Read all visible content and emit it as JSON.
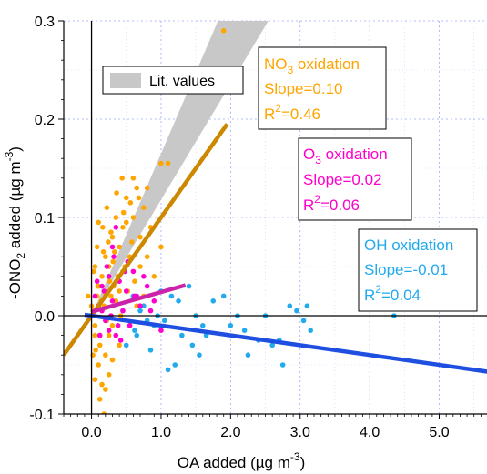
{
  "chart_data": {
    "type": "scatter",
    "xlabel": {
      "base": "OA added (µg m",
      "sup": "-3",
      "end": ")"
    },
    "ylabel": {
      "base": "-ONO",
      "sub": "2",
      "mid": " added (µg m",
      "sup": "-3",
      "end": ")"
    },
    "xlim": [
      -0.4,
      5.7
    ],
    "ylim": [
      -0.1,
      0.3
    ],
    "x_ticks": [
      0.0,
      1.0,
      2.0,
      3.0,
      4.0,
      5.0
    ],
    "x_tick_labels": [
      "0.0",
      "1.0",
      "2.0",
      "3.0",
      "4.0",
      "5.0"
    ],
    "y_ticks": [
      -0.1,
      0.0,
      0.1,
      0.2,
      0.3
    ],
    "y_tick_labels": [
      "-0.1",
      "0.0",
      "0.1",
      "0.2",
      "0.3"
    ],
    "grid": true,
    "legend": {
      "position": "top-left",
      "label": "Lit. values",
      "color": "#c8c8c8"
    },
    "lit_band": {
      "x_from": 0,
      "upper_slope": 0.165,
      "lower_slope": 0.118,
      "color": "#c8c8c8"
    },
    "series": [
      {
        "id": "no3",
        "color": "#ffa500",
        "line_color": "#cc8800",
        "fit": {
          "slope": 0.1,
          "intercept": 0.0,
          "x_range": [
            -0.4,
            1.95
          ]
        },
        "annotation": {
          "name": "NO",
          "name_sub": "3",
          "name_end": " oxidation",
          "slope_text": "Slope=0.10",
          "r2_text": "=0.46"
        },
        "points": [
          [
            0.02,
            0.005
          ],
          [
            0.05,
            -0.01
          ],
          [
            0.08,
            0.02
          ],
          [
            0.1,
            0.03
          ],
          [
            0.12,
            -0.02
          ],
          [
            0.15,
            0.04
          ],
          [
            0.18,
            0.01
          ],
          [
            0.2,
            0.06
          ],
          [
            0.22,
            -0.005
          ],
          [
            0.25,
            0.05
          ],
          [
            0.28,
            0.02
          ],
          [
            0.3,
            0.08
          ],
          [
            0.32,
            0.03
          ],
          [
            0.35,
            0.1
          ],
          [
            0.38,
            0.04
          ],
          [
            0.4,
            0.07
          ],
          [
            0.42,
            0.0
          ],
          [
            0.45,
            0.09
          ],
          [
            0.48,
            0.05
          ],
          [
            0.5,
            0.12
          ],
          [
            0.55,
            0.06
          ],
          [
            0.6,
            0.1
          ],
          [
            0.65,
            0.13
          ],
          [
            0.7,
            0.08
          ],
          [
            0.75,
            0.11
          ],
          [
            0.8,
            0.06
          ],
          [
            0.85,
            0.09
          ],
          [
            1.0,
            0.155
          ],
          [
            1.1,
            0.155
          ],
          [
            1.9,
            0.29
          ],
          [
            0.1,
            -0.05
          ],
          [
            0.15,
            -0.07
          ],
          [
            0.2,
            -0.04
          ],
          [
            0.05,
            -0.065
          ],
          [
            0.12,
            -0.03
          ],
          [
            0.25,
            -0.02
          ],
          [
            0.18,
            -0.1
          ],
          [
            0.08,
            0.07
          ],
          [
            0.0,
            0.01
          ],
          [
            -0.05,
            0.02
          ],
          [
            0.03,
            0.045
          ],
          [
            0.06,
            -0.035
          ],
          [
            0.14,
            0.015
          ],
          [
            0.16,
            0.09
          ],
          [
            0.22,
            0.11
          ],
          [
            0.28,
            0.085
          ],
          [
            0.33,
            0.065
          ],
          [
            0.36,
            0.125
          ],
          [
            0.44,
            0.14
          ],
          [
            0.5,
            0.095
          ],
          [
            0.58,
            0.075
          ],
          [
            0.62,
            0.035
          ],
          [
            0.7,
            0.05
          ],
          [
            0.1,
            0.095
          ],
          [
            0.2,
            0.02
          ],
          [
            0.3,
            -0.01
          ],
          [
            0.4,
            0.025
          ],
          [
            0.35,
            0.015
          ],
          [
            0.05,
            0.05
          ],
          [
            -0.02,
            0.0
          ],
          [
            0.09,
            0.03
          ],
          [
            0.26,
            0.035
          ],
          [
            0.31,
            0.055
          ],
          [
            0.45,
            0.045
          ],
          [
            0.52,
            0.025
          ],
          [
            0.6,
            0.14
          ],
          [
            0.75,
            0.02
          ],
          [
            0.9,
            0.04
          ],
          [
            1.0,
            0.07
          ],
          [
            0.65,
            0.01
          ],
          [
            0.55,
            -0.01
          ],
          [
            0.4,
            -0.03
          ],
          [
            0.3,
            -0.045
          ],
          [
            0.25,
            -0.06
          ],
          [
            0.2,
            -0.075
          ],
          [
            0.12,
            -0.085
          ],
          [
            0.05,
            -0.02
          ],
          [
            0.02,
            -0.04
          ],
          [
            0.17,
            0.065
          ],
          [
            0.24,
            0.075
          ],
          [
            0.46,
            0.105
          ],
          [
            0.56,
            0.115
          ],
          [
            0.68,
            0.12
          ],
          [
            0.8,
            0.13
          ]
        ]
      },
      {
        "id": "o3",
        "color": "#ff00cc",
        "line_color": "#cc22aa",
        "fit": {
          "slope": 0.02,
          "intercept": 0.004,
          "x_range": [
            0.0,
            1.35
          ]
        },
        "annotation": {
          "name": "O",
          "name_sub": "3",
          "name_end": " oxidation",
          "slope_text": "Slope=0.02",
          "r2_text": "=0.06"
        },
        "points": [
          [
            0.05,
            0.02
          ],
          [
            0.1,
            0.01
          ],
          [
            0.15,
            0.03
          ],
          [
            0.2,
            -0.005
          ],
          [
            0.25,
            0.04
          ],
          [
            0.3,
            0.015
          ],
          [
            0.35,
            -0.02
          ],
          [
            0.4,
            0.035
          ],
          [
            0.45,
            0.005
          ],
          [
            0.5,
            0.025
          ],
          [
            0.55,
            -0.01
          ],
          [
            0.6,
            0.045
          ],
          [
            0.65,
            0.02
          ],
          [
            0.7,
            0.01
          ],
          [
            0.8,
            0.03
          ],
          [
            0.9,
            0.015
          ],
          [
            1.0,
            -0.015
          ],
          [
            0.12,
            -0.02
          ],
          [
            0.22,
            0.05
          ],
          [
            0.32,
            0.06
          ],
          [
            0.38,
            -0.01
          ],
          [
            0.48,
            0.045
          ],
          [
            0.28,
            0.0
          ],
          [
            0.18,
            0.025
          ],
          [
            0.08,
            0.035
          ],
          [
            0.42,
            -0.025
          ],
          [
            0.52,
            0.055
          ],
          [
            0.62,
            0.02
          ],
          [
            0.75,
            0.04
          ],
          [
            0.85,
            0.005
          ],
          [
            0.3,
            0.07
          ],
          [
            0.35,
            0.09
          ],
          [
            0.25,
            -0.015
          ],
          [
            0.15,
            0.005
          ]
        ]
      },
      {
        "id": "oh",
        "color": "#22aaee",
        "line_color": "#1f4fe0",
        "fit": {
          "slope": -0.01,
          "intercept": 0.0,
          "x_range": [
            -0.1,
            5.7
          ]
        },
        "annotation": {
          "name": "OH oxidation",
          "slope_text": "Slope=-0.01",
          "r2_text": "=0.04"
        },
        "points": [
          [
            0.6,
            0.02
          ],
          [
            0.75,
            0.01
          ],
          [
            0.9,
            -0.01
          ],
          [
            1.0,
            0.025
          ],
          [
            1.05,
            -0.005
          ],
          [
            1.15,
            0.02
          ],
          [
            1.25,
            0.015
          ],
          [
            1.3,
            -0.02
          ],
          [
            1.4,
            0.03
          ],
          [
            1.5,
            0.0
          ],
          [
            1.6,
            -0.01
          ],
          [
            1.75,
            0.015
          ],
          [
            1.9,
            0.02
          ],
          [
            2.0,
            -0.01
          ],
          [
            2.1,
            0.0
          ],
          [
            2.2,
            -0.015
          ],
          [
            2.4,
            -0.025
          ],
          [
            2.5,
            0.0
          ],
          [
            2.6,
            -0.03
          ],
          [
            2.7,
            -0.025
          ],
          [
            2.75,
            -0.05
          ],
          [
            2.85,
            0.01
          ],
          [
            2.95,
            0.005
          ],
          [
            3.05,
            -0.005
          ],
          [
            3.15,
            -0.015
          ],
          [
            3.1,
            0.01
          ],
          [
            4.35,
            0.0
          ],
          [
            0.5,
            -0.03
          ],
          [
            0.65,
            -0.02
          ],
          [
            0.85,
            -0.035
          ],
          [
            1.1,
            -0.055
          ],
          [
            1.2,
            -0.05
          ],
          [
            1.45,
            -0.03
          ],
          [
            1.65,
            -0.02
          ],
          [
            0.45,
            0.005
          ],
          [
            0.55,
            -0.01
          ],
          [
            0.7,
            0.005
          ],
          [
            0.8,
            -0.005
          ],
          [
            0.95,
            0.0
          ],
          [
            1.55,
            -0.04
          ],
          [
            2.25,
            -0.04
          ],
          [
            0.62,
            -0.015
          ]
        ]
      }
    ]
  }
}
